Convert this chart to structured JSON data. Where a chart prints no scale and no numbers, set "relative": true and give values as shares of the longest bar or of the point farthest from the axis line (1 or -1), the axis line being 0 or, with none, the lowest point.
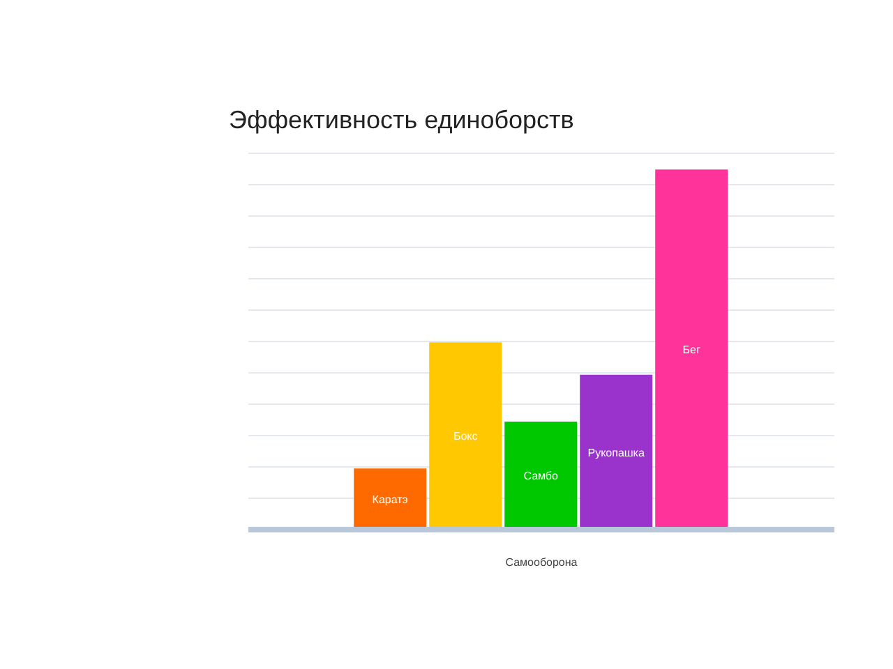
{
  "chart_data": {
    "type": "bar",
    "title": "Эффективность единоборств",
    "xlabel": "Самооборона",
    "categories": [
      null
    ],
    "relative": true,
    "grid": "y",
    "legend": false,
    "series": [
      {
        "name": "Каратэ",
        "color": "#ff6a00",
        "values": [
          0.17
        ]
      },
      {
        "name": "Бокс",
        "color": "#ffc800",
        "values": [
          0.52
        ]
      },
      {
        "name": "Самбо",
        "color": "#00c800",
        "values": [
          0.3
        ]
      },
      {
        "name": "Рукопашка",
        "color": "#9933cc",
        "values": [
          0.43
        ]
      },
      {
        "name": "Бег",
        "color": "#ff3399",
        "values": [
          1
        ]
      }
    ]
  }
}
